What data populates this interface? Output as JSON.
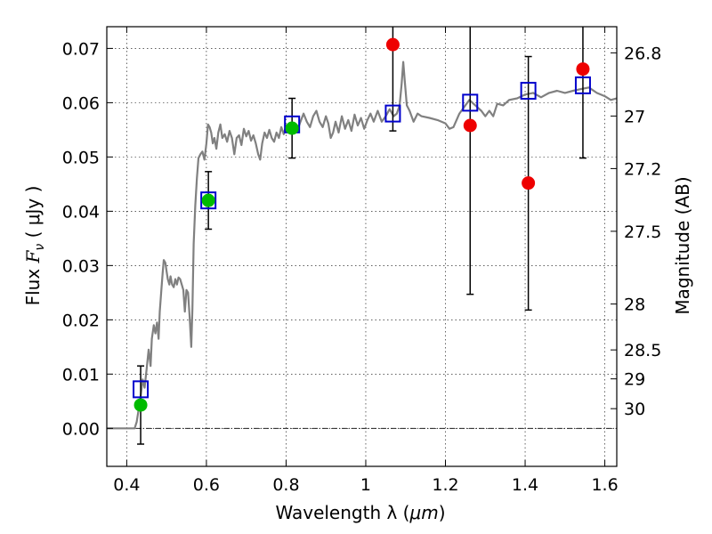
{
  "chart_data": {
    "type": "scatter",
    "title": "",
    "xlabel_prefix": "Wavelength  λ (",
    "xlabel_unit": "μm",
    "xlabel_suffix": ")",
    "ylabel_prefix": "Flux  ",
    "ylabel_var": "F",
    "ylabel_sub": "ν",
    "ylabel_suffix": "  ( μJy )",
    "y2label": "Magnitude (AB)",
    "xlim": [
      0.35,
      1.63
    ],
    "ylim": [
      -0.007,
      0.074
    ],
    "grid": true,
    "x_ticks": [
      {
        "value": 0.4,
        "label": "0.4"
      },
      {
        "value": 0.6,
        "label": "0.6"
      },
      {
        "value": 0.8,
        "label": "0.8"
      },
      {
        "value": 1.0,
        "label": "1"
      },
      {
        "value": 1.2,
        "label": "1.2"
      },
      {
        "value": 1.4,
        "label": "1.4"
      },
      {
        "value": 1.6,
        "label": "1.6"
      }
    ],
    "y_ticks": [
      {
        "value": 0.0,
        "label": "0.00"
      },
      {
        "value": 0.01,
        "label": "0.01"
      },
      {
        "value": 0.02,
        "label": "0.02"
      },
      {
        "value": 0.03,
        "label": "0.03"
      },
      {
        "value": 0.04,
        "label": "0.04"
      },
      {
        "value": 0.05,
        "label": "0.05"
      },
      {
        "value": 0.06,
        "label": "0.06"
      },
      {
        "value": 0.07,
        "label": "0.07"
      }
    ],
    "y2_ticks": [
      {
        "value": 26.8,
        "label": "26.8"
      },
      {
        "value": 27.0,
        "label": "27"
      },
      {
        "value": 27.2,
        "label": "27.2"
      },
      {
        "value": 27.5,
        "label": "27.5"
      },
      {
        "value": 28.0,
        "label": "28"
      },
      {
        "value": 28.5,
        "label": "28.5"
      },
      {
        "value": 29.0,
        "label": "29"
      },
      {
        "value": 30.0,
        "label": "30"
      }
    ],
    "zero_line": 0.0,
    "colors": {
      "model": "#808080",
      "model_flux": "#0000cc",
      "detection": "#00bb00",
      "nondetection": "#ee0000",
      "errorbar": "#000000"
    },
    "series": [
      {
        "kind": "line",
        "points": [
          [
            0.35,
            0.0
          ],
          [
            0.42,
            0.0
          ],
          [
            0.425,
            0.0012
          ],
          [
            0.43,
            0.0035
          ],
          [
            0.435,
            0.006
          ],
          [
            0.44,
            0.009
          ],
          [
            0.445,
            0.0075
          ],
          [
            0.45,
            0.011
          ],
          [
            0.455,
            0.0145
          ],
          [
            0.46,
            0.0115
          ],
          [
            0.463,
            0.0165
          ],
          [
            0.468,
            0.019
          ],
          [
            0.472,
            0.0175
          ],
          [
            0.476,
            0.0195
          ],
          [
            0.48,
            0.0165
          ],
          [
            0.483,
            0.0215
          ],
          [
            0.487,
            0.0255
          ],
          [
            0.49,
            0.0285
          ],
          [
            0.493,
            0.031
          ],
          [
            0.497,
            0.0305
          ],
          [
            0.5,
            0.029
          ],
          [
            0.503,
            0.0275
          ],
          [
            0.507,
            0.0265
          ],
          [
            0.51,
            0.028
          ],
          [
            0.514,
            0.0265
          ],
          [
            0.518,
            0.026
          ],
          [
            0.522,
            0.0275
          ],
          [
            0.526,
            0.0265
          ],
          [
            0.53,
            0.0278
          ],
          [
            0.534,
            0.0275
          ],
          [
            0.538,
            0.0265
          ],
          [
            0.542,
            0.0255
          ],
          [
            0.546,
            0.0215
          ],
          [
            0.55,
            0.0255
          ],
          [
            0.554,
            0.025
          ],
          [
            0.558,
            0.0205
          ],
          [
            0.562,
            0.015
          ],
          [
            0.565,
            0.022
          ],
          [
            0.568,
            0.034
          ],
          [
            0.572,
            0.041
          ],
          [
            0.576,
            0.046
          ],
          [
            0.58,
            0.0498
          ],
          [
            0.585,
            0.0505
          ],
          [
            0.59,
            0.051
          ],
          [
            0.595,
            0.0495
          ],
          [
            0.6,
            0.0525
          ],
          [
            0.604,
            0.056
          ],
          [
            0.608,
            0.0555
          ],
          [
            0.612,
            0.0545
          ],
          [
            0.616,
            0.0525
          ],
          [
            0.62,
            0.0535
          ],
          [
            0.625,
            0.0515
          ],
          [
            0.63,
            0.0545
          ],
          [
            0.635,
            0.056
          ],
          [
            0.64,
            0.0535
          ],
          [
            0.646,
            0.0542
          ],
          [
            0.652,
            0.0528
          ],
          [
            0.658,
            0.0548
          ],
          [
            0.664,
            0.0535
          ],
          [
            0.67,
            0.0505
          ],
          [
            0.676,
            0.0535
          ],
          [
            0.682,
            0.054
          ],
          [
            0.688,
            0.0522
          ],
          [
            0.694,
            0.0552
          ],
          [
            0.7,
            0.0538
          ],
          [
            0.706,
            0.0548
          ],
          [
            0.712,
            0.053
          ],
          [
            0.718,
            0.054
          ],
          [
            0.724,
            0.0525
          ],
          [
            0.73,
            0.0505
          ],
          [
            0.735,
            0.0495
          ],
          [
            0.74,
            0.0525
          ],
          [
            0.746,
            0.0545
          ],
          [
            0.752,
            0.0535
          ],
          [
            0.758,
            0.055
          ],
          [
            0.764,
            0.0535
          ],
          [
            0.77,
            0.0528
          ],
          [
            0.776,
            0.0545
          ],
          [
            0.782,
            0.0535
          ],
          [
            0.788,
            0.0555
          ],
          [
            0.794,
            0.0542
          ],
          [
            0.8,
            0.0558
          ],
          [
            0.806,
            0.0545
          ],
          [
            0.812,
            0.0555
          ],
          [
            0.82,
            0.0562
          ],
          [
            0.828,
            0.0548
          ],
          [
            0.836,
            0.0565
          ],
          [
            0.844,
            0.058
          ],
          [
            0.852,
            0.0565
          ],
          [
            0.86,
            0.0555
          ],
          [
            0.868,
            0.0575
          ],
          [
            0.876,
            0.0585
          ],
          [
            0.884,
            0.0565
          ],
          [
            0.892,
            0.0555
          ],
          [
            0.9,
            0.0575
          ],
          [
            0.906,
            0.0562
          ],
          [
            0.912,
            0.0535
          ],
          [
            0.918,
            0.0545
          ],
          [
            0.924,
            0.0565
          ],
          [
            0.932,
            0.0545
          ],
          [
            0.94,
            0.0575
          ],
          [
            0.948,
            0.0552
          ],
          [
            0.956,
            0.0568
          ],
          [
            0.964,
            0.0548
          ],
          [
            0.972,
            0.0578
          ],
          [
            0.98,
            0.0558
          ],
          [
            0.988,
            0.0572
          ],
          [
            0.996,
            0.0552
          ],
          [
            1.004,
            0.0568
          ],
          [
            1.012,
            0.058
          ],
          [
            1.02,
            0.0565
          ],
          [
            1.03,
            0.0585
          ],
          [
            1.04,
            0.0565
          ],
          [
            1.05,
            0.0575
          ],
          [
            1.06,
            0.0588
          ],
          [
            1.07,
            0.0575
          ],
          [
            1.078,
            0.058
          ],
          [
            1.085,
            0.0595
          ],
          [
            1.09,
            0.0635
          ],
          [
            1.094,
            0.0675
          ],
          [
            1.098,
            0.064
          ],
          [
            1.103,
            0.0595
          ],
          [
            1.11,
            0.0585
          ],
          [
            1.12,
            0.0565
          ],
          [
            1.13,
            0.058
          ],
          [
            1.14,
            0.0575
          ],
          [
            1.16,
            0.0572
          ],
          [
            1.18,
            0.0568
          ],
          [
            1.2,
            0.0562
          ],
          [
            1.21,
            0.0552
          ],
          [
            1.22,
            0.0555
          ],
          [
            1.235,
            0.058
          ],
          [
            1.25,
            0.0595
          ],
          [
            1.26,
            0.0605
          ],
          [
            1.275,
            0.0595
          ],
          [
            1.29,
            0.0585
          ],
          [
            1.3,
            0.0575
          ],
          [
            1.31,
            0.0585
          ],
          [
            1.32,
            0.0575
          ],
          [
            1.33,
            0.0598
          ],
          [
            1.345,
            0.0595
          ],
          [
            1.36,
            0.0605
          ],
          [
            1.38,
            0.0608
          ],
          [
            1.4,
            0.0615
          ],
          [
            1.42,
            0.0618
          ],
          [
            1.44,
            0.061
          ],
          [
            1.46,
            0.0618
          ],
          [
            1.48,
            0.0622
          ],
          [
            1.5,
            0.0618
          ],
          [
            1.52,
            0.0622
          ],
          [
            1.54,
            0.0625
          ],
          [
            1.56,
            0.0628
          ],
          [
            1.58,
            0.0618
          ],
          [
            1.6,
            0.0612
          ],
          [
            1.615,
            0.0605
          ],
          [
            1.63,
            0.0608
          ]
        ]
      },
      {
        "kind": "squares",
        "x": [
          0.435,
          0.605,
          0.815,
          1.068,
          1.262,
          1.408,
          1.545
        ],
        "y": [
          0.0072,
          0.042,
          0.056,
          0.058,
          0.06,
          0.0622,
          0.0632
        ]
      },
      {
        "kind": "detections",
        "x": [
          0.435,
          0.605,
          0.815
        ],
        "y": [
          0.0043,
          0.042,
          0.0553
        ],
        "yerr": [
          0.0072,
          0.0053,
          0.0055
        ]
      },
      {
        "kind": "nondetections",
        "x": [
          1.068,
          1.262,
          1.408,
          1.545
        ],
        "y": [
          0.0707,
          0.0558,
          0.0452,
          0.0662
        ],
        "ylow": [
          0.0548,
          0.0247,
          0.0218,
          0.0498
        ],
        "yhigh": [
          0.0745,
          0.0745,
          0.0685,
          0.0745
        ]
      }
    ]
  }
}
